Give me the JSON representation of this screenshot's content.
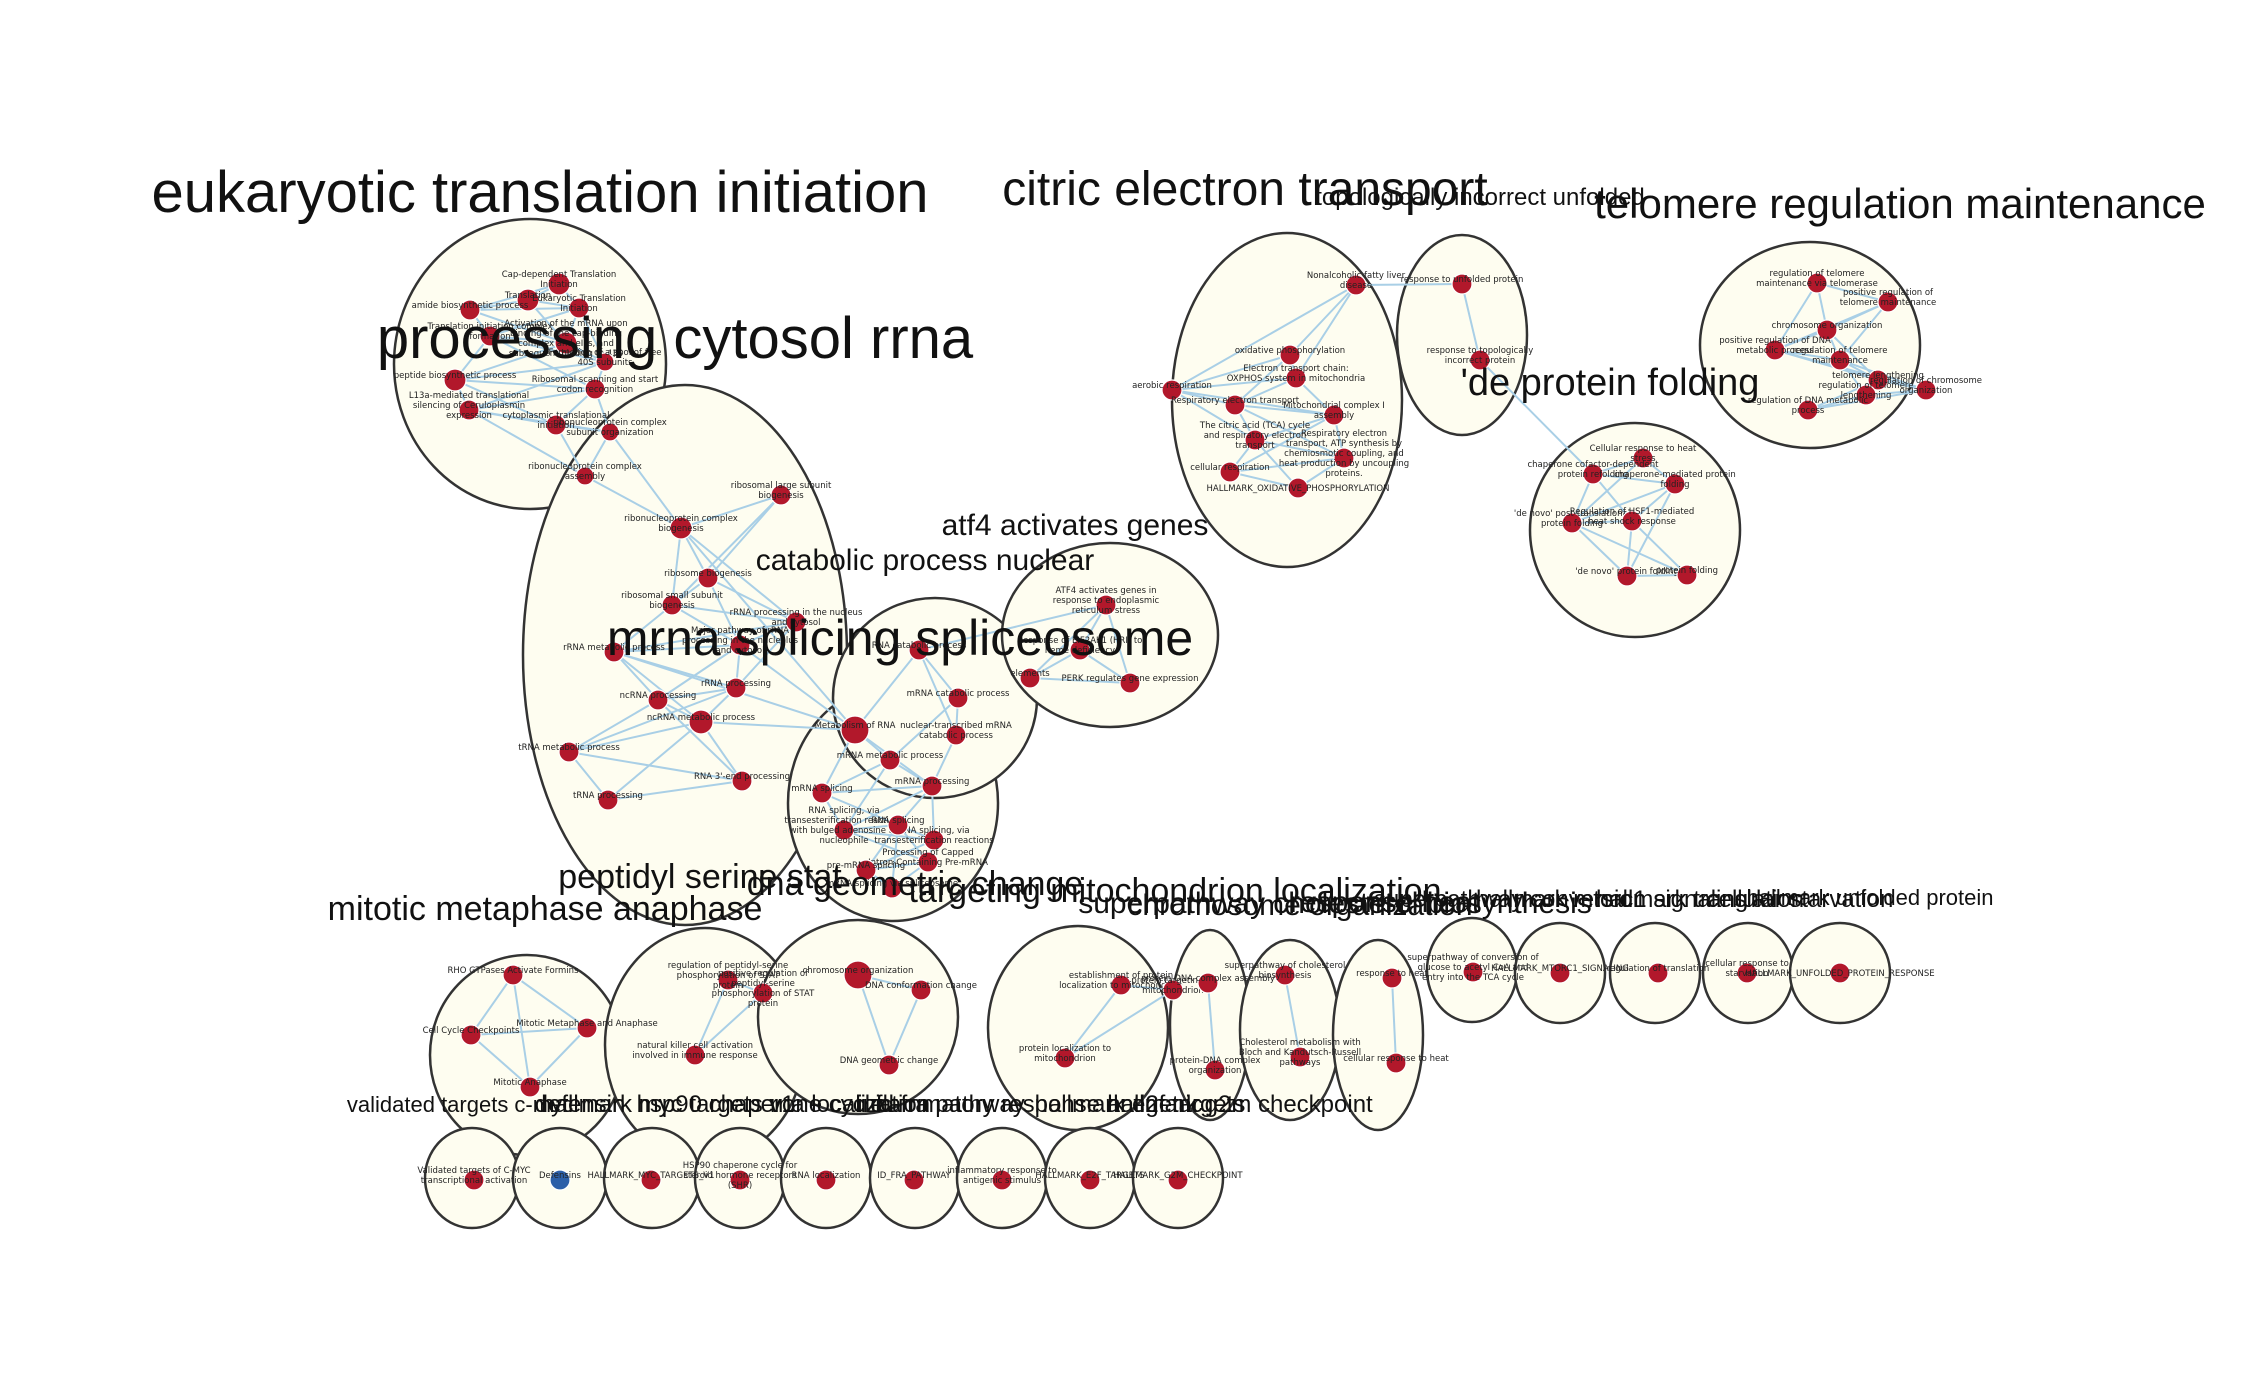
{
  "colors": {
    "node": "#b2182b",
    "node_alt": "#2c5fa8",
    "edge": "#a9cfe6",
    "cluster_fill": "#fefdf0",
    "cluster_stroke": "#333333"
  },
  "clusters": [
    {
      "id": "c1",
      "label": "eukaryotic translation initiation",
      "nodes": [
        "Cap-dependent Translation Initiation",
        "Translation",
        "amide biosynthetic process",
        "Eukaryotic Translation Initiation",
        "Activation of the mRNA upon binding of the cap-binding complex and eIFs, and subsequent binding to 43S",
        "Translation initiation complex formation",
        "Formation of a pool of free 40S subunits",
        "peptide biosynthetic process",
        "Ribosomal scanning and start codon recognition",
        "L13a-mediated translational silencing of Ceruloplasmin expression",
        "cytoplasmic translational initiation",
        "ribonucleoprotein complex subunit organization",
        "ribonucleoprotein complex assembly"
      ]
    },
    {
      "id": "c2",
      "label": "processing cytosol rrna",
      "nodes": [
        "ribosomal large subunit biogenesis",
        "ribonucleoprotein complex biogenesis",
        "ribosome biogenesis",
        "ribosomal small subunit biogenesis",
        "rRNA processing in the nucleus and cytosol",
        "Major pathway of rRNA processing in the nucleolus and cytosol",
        "rRNA metabolic process",
        "rRNA processing",
        "ncRNA processing",
        "ncRNA metabolic process",
        "tRNA metabolic process",
        "RNA 3'-end processing",
        "tRNA processing"
      ]
    },
    {
      "id": "c3",
      "label": "mrna splicing spliceosome",
      "nodes": [
        "Metabolism of RNA",
        "mRNA metabolic process",
        "mRNA splicing",
        "mRNA processing",
        "RNA splicing, via transesterification reactions with bulged adenosine as nucleophile",
        "RNA splicing, via transesterification reactions",
        "RNA splicing",
        "Processing of Capped Intron-Containing Pre-mRNA",
        "pre-mRNA splicing",
        "mRNA splicing via spliceosome"
      ]
    },
    {
      "id": "c4",
      "label": "catabolic process nuclear",
      "nodes": [
        "RNA catabolic process",
        "nuclear-transcribed mRNA catabolic process",
        "mRNA catabolic process"
      ]
    },
    {
      "id": "c5",
      "label": "atf4 activates genes",
      "nodes": [
        "ATF4 activates genes in response to endoplasmic reticulum stress",
        "PERK regulates gene expression",
        "Response of EIF2AK1 (HRI) to heme deficiency",
        "elements"
      ]
    },
    {
      "id": "c6",
      "label": "citric electron transport",
      "nodes": [
        "Nonalcoholic fatty liver disease",
        "oxidative phosphorylation",
        "Electron transport chain: OXPHOS system in mitochondria",
        "aerobic respiration",
        "Respiratory electron transport",
        "Mitochondrial complex I assembly",
        "The citric acid (TCA) cycle and respiratory electron transport",
        "Respiratory electron transport, ATP synthesis by chemiosmotic coupling, and heat production by uncoupling proteins.",
        "cellular respiration",
        "HALLMARK_OXIDATIVE_PHOSPHORYLATION"
      ]
    },
    {
      "id": "c7",
      "label": "topologically incorrect unfolded",
      "nodes": [
        "response to unfolded protein",
        "response to topologically incorrect protein"
      ]
    },
    {
      "id": "c8",
      "label": "telomere regulation maintenance",
      "nodes": [
        "regulation of telomere maintenance via telomerase",
        "positive regulation of telomere maintenance",
        "chromosome organization",
        "positive regulation of DNA metabolic process",
        "regulation of telomere maintenance",
        "telomere lengthening",
        "regulation of chromosome organization",
        "regulation of telomere lengthening",
        "regulation of DNA metabolic process"
      ]
    },
    {
      "id": "c9",
      "label": "'de protein folding",
      "nodes": [
        "Cellular response to heat stress",
        "chaperone cofactor-dependent protein refolding",
        "chaperone-mediated protein folding",
        "'de novo' post-translational protein folding",
        "Regulation of HSF1-mediated heat shock response",
        "'de novo' protein folding",
        "protein folding"
      ]
    },
    {
      "id": "c10",
      "label": "mitotic metaphase anaphase",
      "nodes": [
        "RHO GTPases Activate Formins",
        "Cell Cycle Checkpoints",
        "Mitotic Metaphase and Anaphase",
        "Mitotic Anaphase"
      ]
    },
    {
      "id": "c11",
      "label": "peptidyl serine stat",
      "nodes": [
        "regulation of peptidyl-serine phosphorylation of STAT protein",
        "positive regulation of peptidyl-serine phosphorylation of STAT protein",
        "natural killer cell activation involved in immune response"
      ]
    },
    {
      "id": "c12",
      "label": "dna geometric change",
      "nodes": [
        "chromosome organization",
        "DNA conformation change",
        "DNA geometric change"
      ]
    },
    {
      "id": "c13",
      "label": "targeting mitochondrion localization",
      "nodes": [
        "establishment of protein localization to mitochondrion",
        "protein targeting to mitochondrion",
        "protein localization to mitochondrion"
      ]
    },
    {
      "id": "c14",
      "label": "chromosome organization",
      "nodes": [
        "protein-DNA complex assembly",
        "protein-DNA complex organization"
      ]
    },
    {
      "id": "c15",
      "label": "superpathway cholesterol biosynthesis",
      "nodes": [
        "superpathway of cholesterol biosynthesis",
        "Cholesterol metabolism with Bloch and Kandutsch-Russell pathways"
      ]
    },
    {
      "id": "c16",
      "label": "response heat",
      "nodes": [
        "response to heat",
        "cellular response to heat"
      ]
    },
    {
      "id": "c17",
      "label": "superpathway conversion",
      "nodes": [
        "superpathway of conversion of glucose to acetyl CoA and entry into the TCA cycle"
      ]
    },
    {
      "id": "c18",
      "label": "hallmark mtorc1 signaling",
      "nodes": [
        "HALLMARK_MTORC1_SIGNALING"
      ]
    },
    {
      "id": "c19",
      "label": "hallmark translation",
      "nodes": [
        "regulation of translation"
      ]
    },
    {
      "id": "c20",
      "label": "cellular starvation",
      "nodes": [
        "cellular response to starvation"
      ]
    },
    {
      "id": "c21",
      "label": "hallmark unfolded protein",
      "nodes": [
        "HALLMARK_UNFOLDED_PROTEIN_RESPONSE"
      ]
    },
    {
      "id": "c22",
      "label": "validated targets c-myc",
      "nodes": [
        "Validated targets of C-MYC transcriptional activation"
      ]
    },
    {
      "id": "c23",
      "label": "defensin",
      "nodes": [
        "Defensins"
      ]
    },
    {
      "id": "c24",
      "label": "hallmark myc targets v1",
      "nodes": [
        "HALLMARK_MYC_TARGETS_V1"
      ]
    },
    {
      "id": "c25",
      "label": "hsp90 chaperone cycle",
      "nodes": [
        "HSP90 chaperone cycle for steroid hormone receptors (SHR)"
      ]
    },
    {
      "id": "c26",
      "label": "rna localization",
      "nodes": [
        "RNA localization"
      ]
    },
    {
      "id": "c27",
      "label": "id fra pathway",
      "nodes": [
        "ID_FRA_PATHWAY"
      ]
    },
    {
      "id": "c28",
      "label": "inflammatory response antigenic",
      "nodes": [
        "inflammatory response to antigenic stimulus"
      ]
    },
    {
      "id": "c29",
      "label": "hallmark e2f targets",
      "nodes": [
        "HALLMARK_E2F_TARGETS"
      ]
    },
    {
      "id": "c30",
      "label": "hallmark g2m checkpoint",
      "nodes": [
        "HALLMARK_G2M_CHECKPOINT"
      ]
    }
  ]
}
